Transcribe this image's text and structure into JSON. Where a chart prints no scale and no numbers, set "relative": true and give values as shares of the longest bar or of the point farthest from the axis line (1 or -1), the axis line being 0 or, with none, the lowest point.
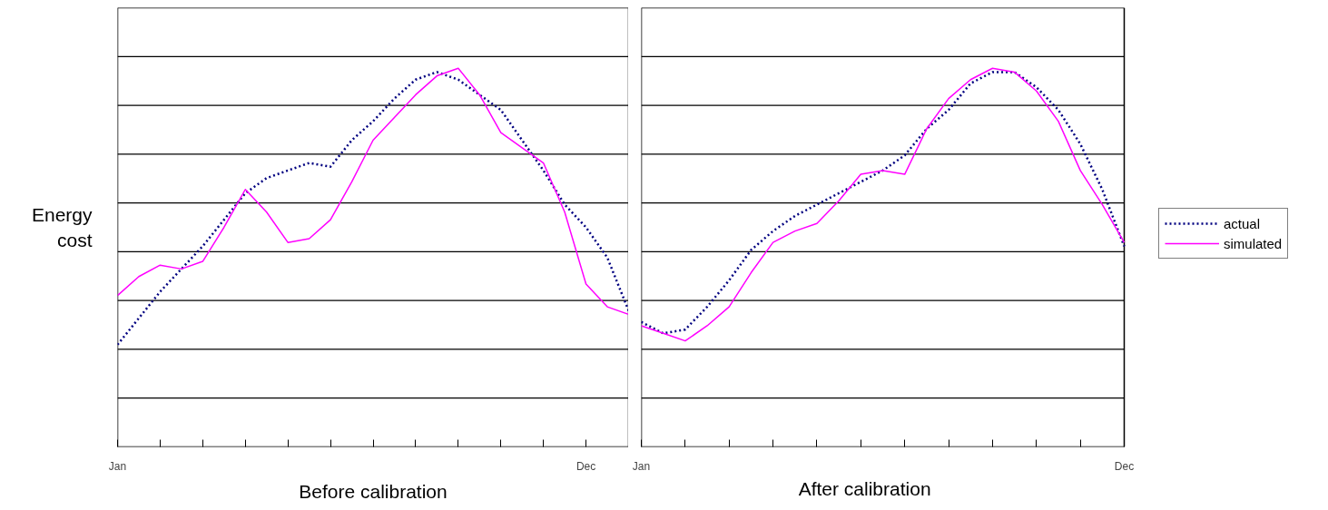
{
  "chart_data": [
    {
      "type": "line",
      "relative": true,
      "xlabel": "Before calibration",
      "ylabel": "Energy cost",
      "grid": "y",
      "categories": [
        "Jan",
        null,
        null,
        null,
        null,
        null,
        null,
        null,
        null,
        null,
        null,
        null,
        null,
        null,
        null,
        null,
        null,
        null,
        null,
        null,
        null,
        null,
        "Dec",
        null,
        null
      ],
      "series": [
        {
          "color": "#000080",
          "line_style": "dotted",
          "values": [
            0.27,
            0.34,
            0.41,
            0.47,
            0.53,
            0.6,
            0.67,
            0.71,
            0.73,
            0.75,
            0.74,
            0.81,
            0.86,
            0.92,
            0.97,
            0.99,
            0.97,
            0.93,
            0.89,
            0.81,
            0.73,
            0.64,
            0.58,
            0.5,
            0.36
          ]
        },
        {
          "color": "#ff00ff",
          "line_style": "solid",
          "values": [
            0.4,
            0.45,
            0.48,
            0.47,
            0.49,
            0.58,
            0.68,
            0.62,
            0.54,
            0.55,
            0.6,
            0.7,
            0.81,
            0.87,
            0.93,
            0.98,
            1,
            0.93,
            0.83,
            0.79,
            0.75,
            0.62,
            0.43,
            0.37,
            0.35
          ]
        }
      ]
    },
    {
      "type": "line",
      "relative": true,
      "xlabel": "After calibration",
      "grid": "y",
      "legend": "right",
      "categories": [
        "Jan",
        null,
        null,
        null,
        null,
        null,
        null,
        null,
        null,
        null,
        null,
        null,
        null,
        null,
        null,
        null,
        null,
        null,
        null,
        null,
        null,
        null,
        "Dec"
      ],
      "series": [
        {
          "name": "actual",
          "color": "#000080",
          "line_style": "dotted",
          "values": [
            0.33,
            0.3,
            0.31,
            0.37,
            0.44,
            0.52,
            0.57,
            0.61,
            0.64,
            0.67,
            0.7,
            0.73,
            0.77,
            0.84,
            0.89,
            0.96,
            0.99,
            0.99,
            0.95,
            0.89,
            0.8,
            0.68,
            0.53
          ]
        },
        {
          "name": "simulated",
          "color": "#ff00ff",
          "line_style": "solid",
          "values": [
            0.32,
            0.3,
            0.28,
            0.32,
            0.37,
            0.46,
            0.54,
            0.57,
            0.59,
            0.65,
            0.72,
            0.73,
            0.72,
            0.84,
            0.92,
            0.97,
            1,
            0.99,
            0.94,
            0.86,
            0.73,
            0.64,
            0.54
          ]
        }
      ]
    }
  ]
}
